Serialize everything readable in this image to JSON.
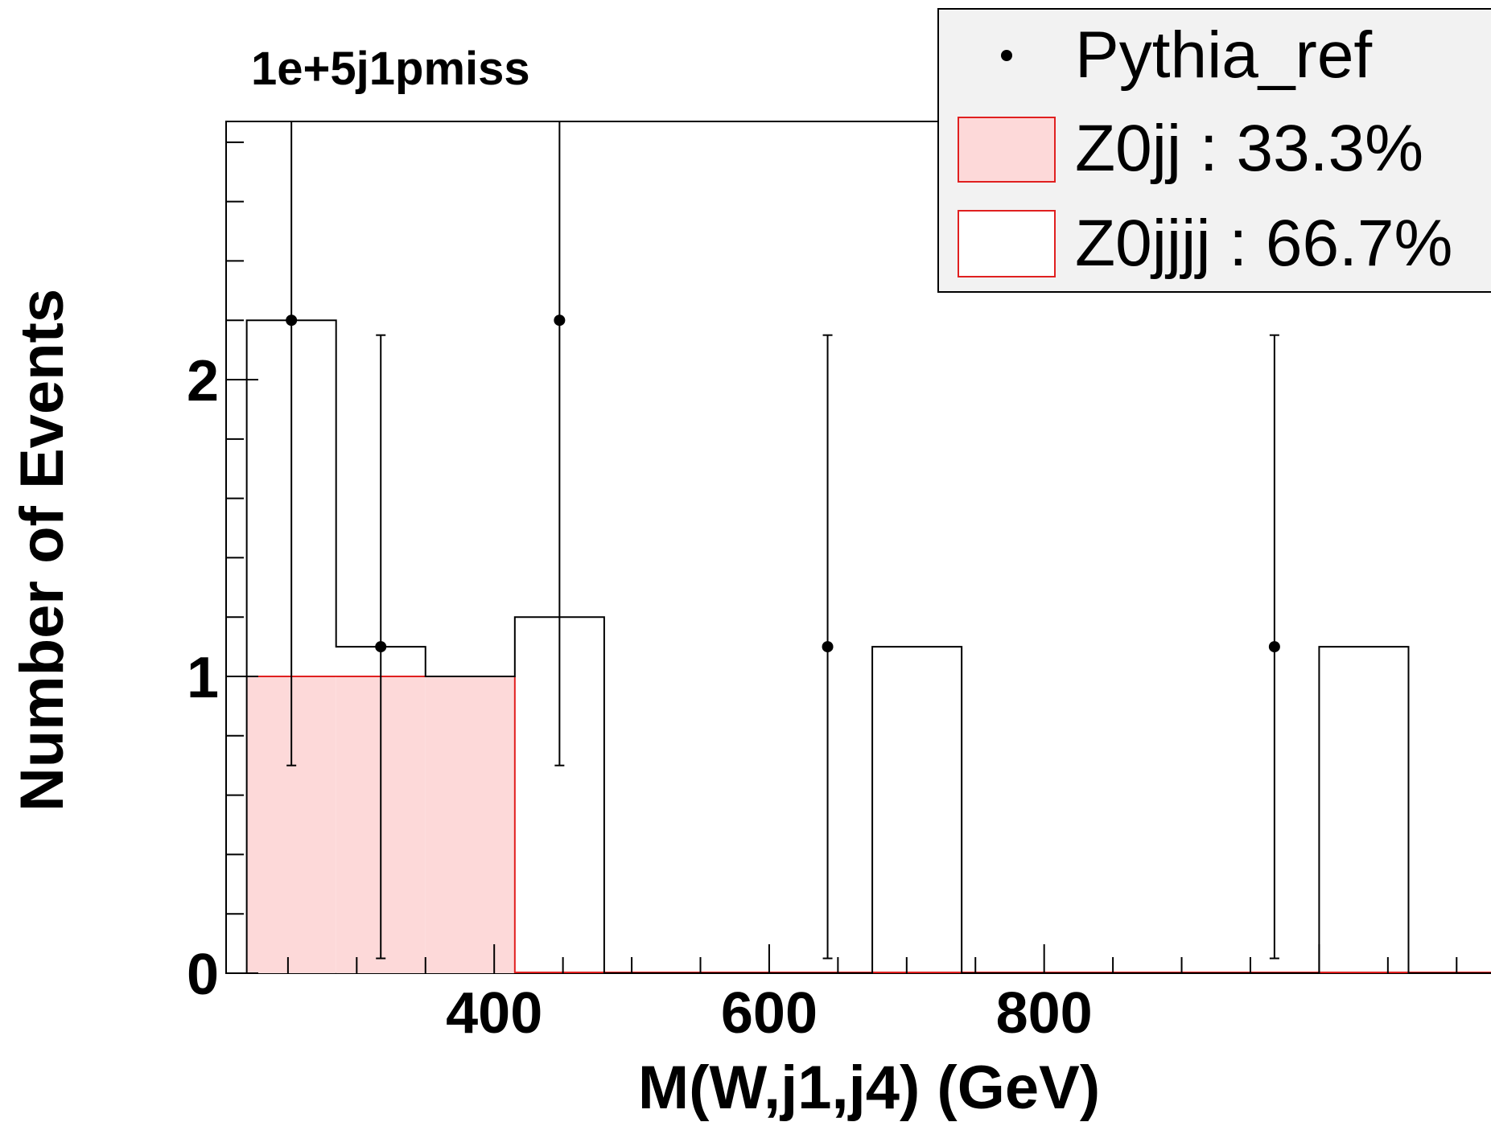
{
  "chart_data": {
    "type": "bar",
    "title": "1e+5j1pmiss",
    "xlabel": "M(W,j1,j4) (GeV)",
    "ylabel": "Number of Events",
    "xlim": [
      205,
      1125
    ],
    "ylim": [
      0,
      2.87
    ],
    "x_ticks": [
      400,
      600,
      800
    ],
    "y_ticks": [
      0,
      1,
      2
    ],
    "bin_edges": [
      220,
      285,
      350,
      415,
      480,
      545,
      610,
      675,
      740,
      805,
      870,
      935,
      1000,
      1065,
      1130
    ],
    "series": [
      {
        "name": "Pythia_ref",
        "style": "points-with-errors",
        "x": [
          252.5,
          317.5,
          447.5,
          642.5,
          967.5
        ],
        "values": [
          2.2,
          1.1,
          2.2,
          1.1,
          1.1
        ],
        "err_low": [
          1.5,
          1.05,
          1.5,
          1.05,
          1.05
        ],
        "err_high": [
          1.33,
          1.05,
          1.33,
          1.05,
          1.05
        ]
      },
      {
        "name": "Z0jj : 33.3%",
        "style": "filled-step",
        "color": "#fdd9d9",
        "edge": "#e02020",
        "values": [
          1,
          1,
          1,
          0,
          0,
          0,
          0,
          0,
          0,
          0,
          0,
          0,
          0,
          0
        ]
      },
      {
        "name": "Z0jjjj : 66.7%",
        "style": "hollow-step",
        "color": "#ffffff",
        "edge": "#e02020",
        "values": [
          1.2,
          0.1,
          0,
          1.2,
          0,
          0,
          0,
          1.1,
          0,
          0,
          0,
          0,
          1.1,
          0
        ]
      }
    ],
    "legend_position": "top-right"
  }
}
